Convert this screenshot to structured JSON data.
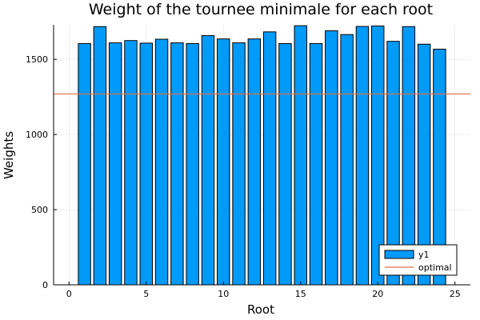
{
  "chart_data": {
    "type": "bar",
    "title": "Weight of the tournee minimale for each root",
    "xlabel": "Root",
    "ylabel": "Weights",
    "xlim": [
      -1,
      26
    ],
    "ylim": [
      0,
      1730
    ],
    "xticks": [
      0,
      5,
      10,
      15,
      20,
      25
    ],
    "yticks": [
      0,
      500,
      1000,
      1500
    ],
    "grid": true,
    "legend_position": "bottom-right",
    "x": [
      1,
      2,
      3,
      4,
      5,
      6,
      7,
      8,
      9,
      10,
      11,
      12,
      13,
      14,
      15,
      16,
      17,
      18,
      19,
      20,
      21,
      22,
      23,
      24
    ],
    "series": [
      {
        "name": "y1",
        "kind": "bar",
        "color": "#009af9",
        "values": [
          1605,
          1718,
          1610,
          1625,
          1608,
          1634,
          1610,
          1605,
          1658,
          1636,
          1610,
          1636,
          1683,
          1605,
          1724,
          1605,
          1690,
          1665,
          1719,
          1722,
          1620,
          1718,
          1601,
          1568
        ]
      },
      {
        "name": "optimal",
        "kind": "hline",
        "color": "#e26f46",
        "value": 1270
      }
    ]
  }
}
